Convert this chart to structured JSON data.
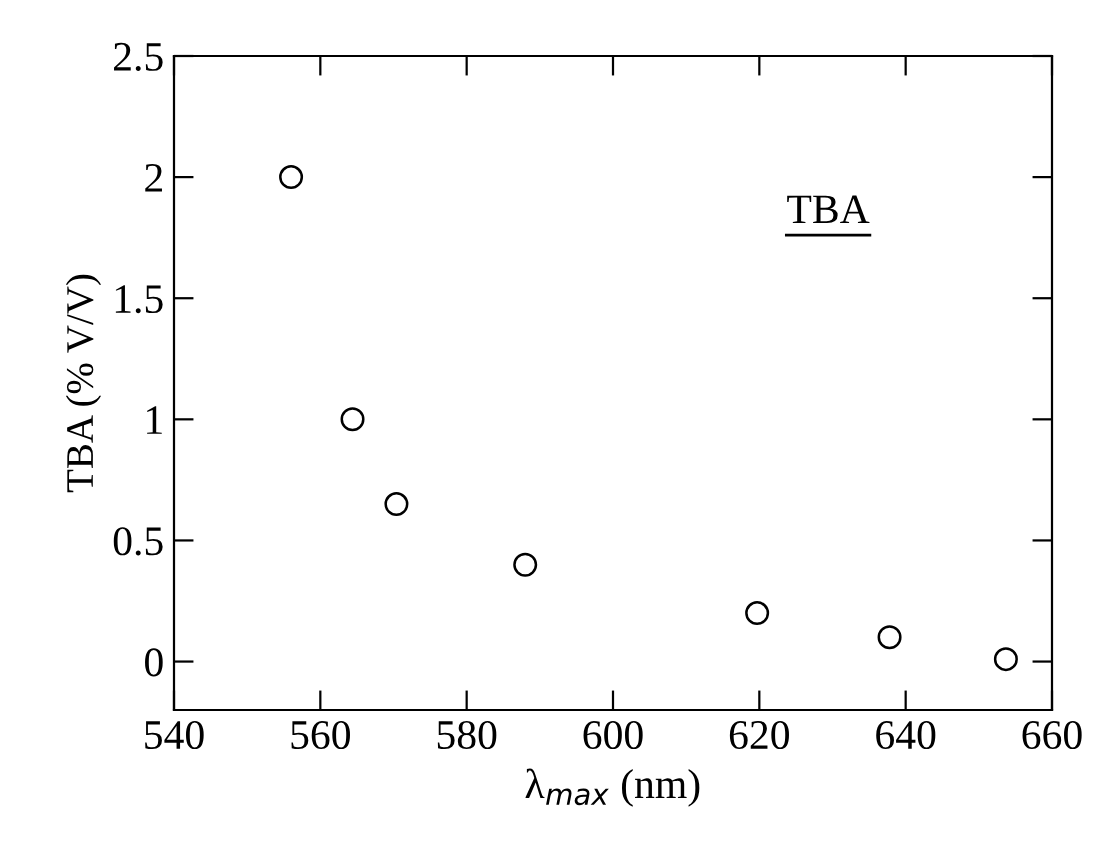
{
  "chart_data": {
    "type": "scatter",
    "xlabel": "λ$_{max}$ (nm)",
    "ylabel": "TBA (% V/V)",
    "annotations": [
      "TBA"
    ],
    "x": [
      556,
      564.4,
      570.4,
      588,
      619.7,
      637.8,
      653.7
    ],
    "values": [
      2,
      1,
      0.65,
      0.4,
      0.2,
      0.1,
      0.01
    ],
    "color": "#000000",
    "marker": "circle",
    "xlim": [
      540,
      660
    ],
    "xticks": [
      540,
      560,
      580,
      600,
      620,
      640,
      660
    ],
    "ylim": [
      -0.2,
      2.5
    ],
    "yticks": [
      0,
      0.5,
      1,
      1.5,
      2,
      2.5
    ],
    "grid": false
  }
}
